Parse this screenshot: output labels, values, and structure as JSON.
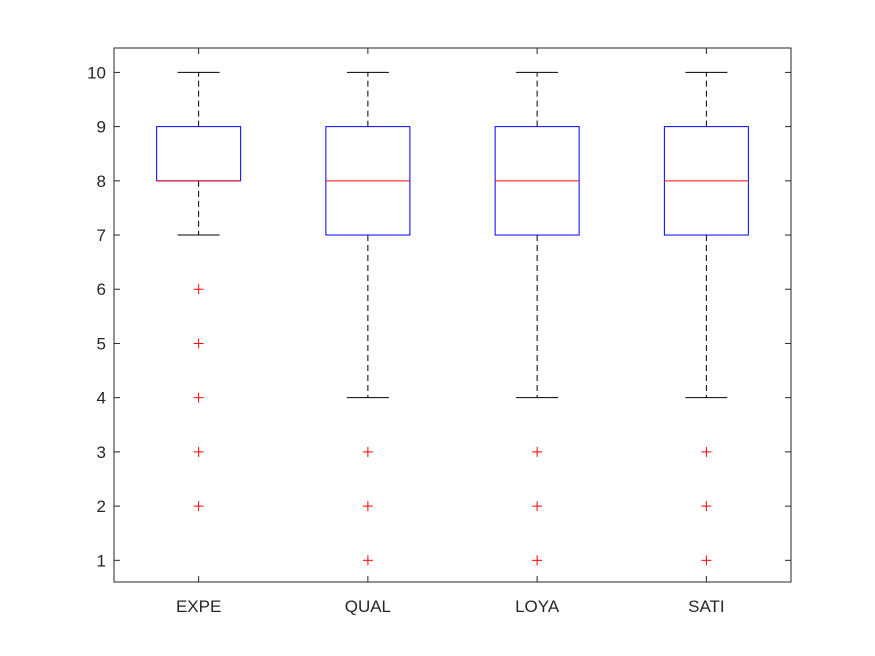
{
  "chart_data": {
    "type": "box",
    "categories": [
      "EXPE",
      "QUAL",
      "LOYA",
      "SATI"
    ],
    "ylim": [
      0.6,
      10.45
    ],
    "yticks": [
      1,
      2,
      3,
      4,
      5,
      6,
      7,
      8,
      9,
      10
    ],
    "grid": false,
    "boxes": [
      {
        "whisker_low": 7,
        "q1": 8,
        "median": 8,
        "q3": 9,
        "whisker_high": 10,
        "outliers": [
          2,
          3,
          4,
          5,
          6
        ]
      },
      {
        "whisker_low": 4,
        "q1": 7,
        "median": 8,
        "q3": 9,
        "whisker_high": 10,
        "outliers": [
          1,
          2,
          3
        ]
      },
      {
        "whisker_low": 4,
        "q1": 7,
        "median": 8,
        "q3": 9,
        "whisker_high": 10,
        "outliers": [
          1,
          2,
          3
        ]
      },
      {
        "whisker_low": 4,
        "q1": 7,
        "median": 8,
        "q3": 9,
        "whisker_high": 10,
        "outliers": [
          1,
          2,
          3
        ]
      }
    ],
    "colors": {
      "box": "#0000ff",
      "median": "#ff0000",
      "whisker": "#000000",
      "outlier": "#ff0000",
      "axis": "#262626"
    }
  }
}
